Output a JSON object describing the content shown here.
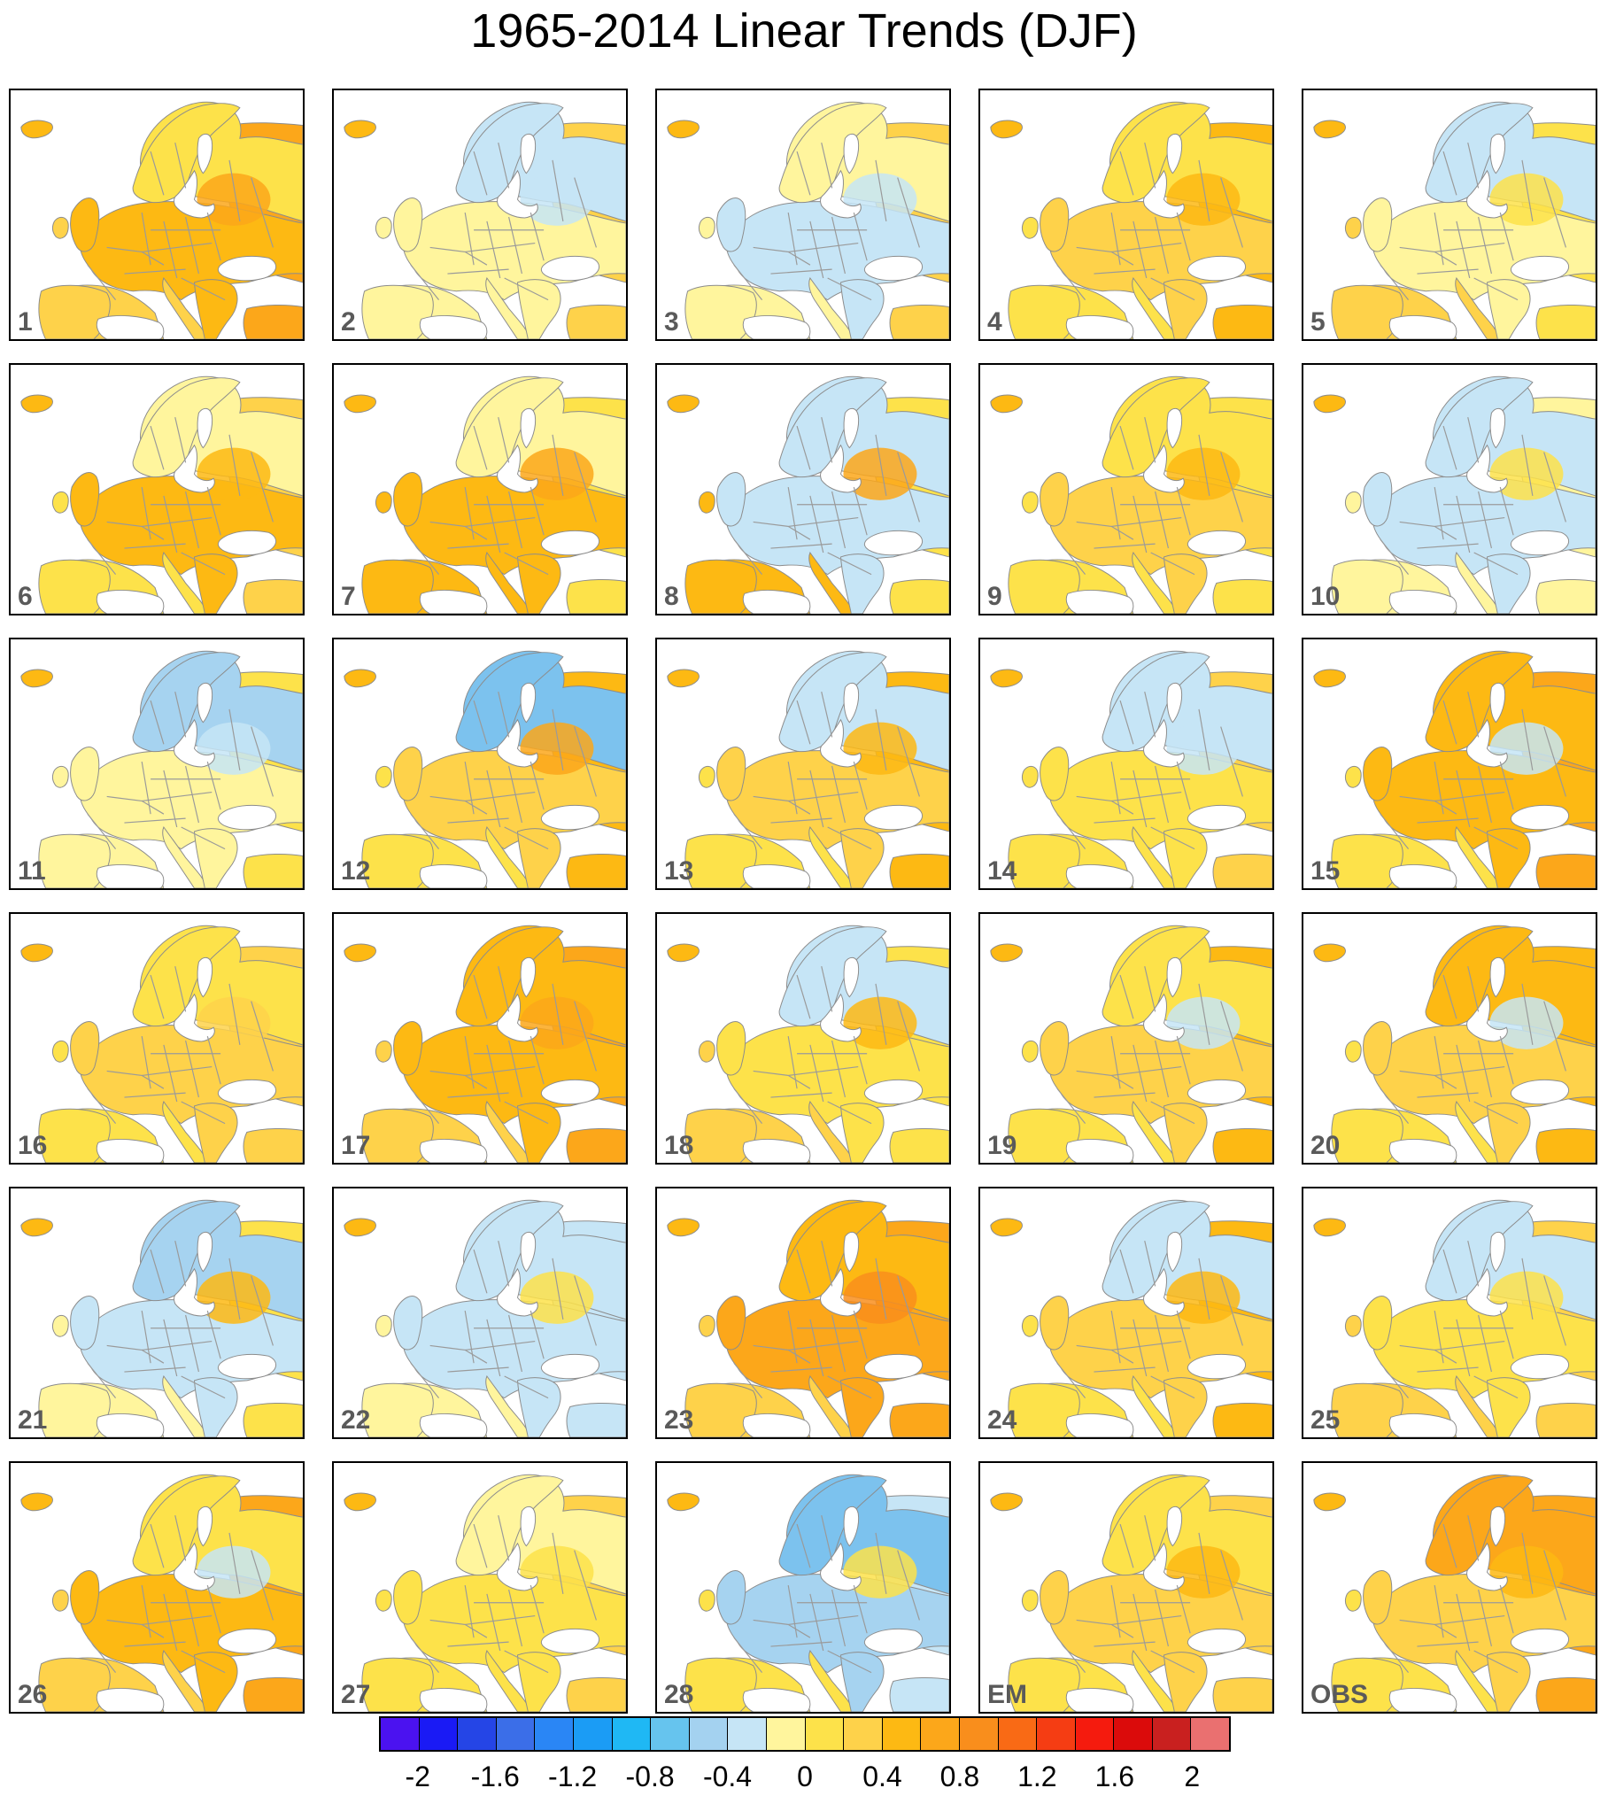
{
  "title": "1965-2014 Linear Trends (DJF)",
  "panels": [
    {
      "label": "1",
      "north": "#fde24a",
      "center": "#fdb913",
      "east": "#fca71a",
      "south": "#fed24a",
      "accent": "#fca71a"
    },
    {
      "label": "2",
      "north": "#c6e5f6",
      "center": "#fff59d",
      "east": "#fed24a",
      "south": "#fff59d",
      "accent": "#c6e5f6"
    },
    {
      "label": "3",
      "north": "#fff59d",
      "center": "#c6e5f6",
      "east": "#fed24a",
      "south": "#fff59d",
      "accent": "#c6e5f6"
    },
    {
      "label": "4",
      "north": "#fde24a",
      "center": "#fed24a",
      "east": "#fdb913",
      "south": "#fde24a",
      "accent": "#fdb913"
    },
    {
      "label": "5",
      "north": "#c6e5f6",
      "center": "#fff59d",
      "east": "#fde24a",
      "south": "#fed24a",
      "accent": "#fde24a"
    },
    {
      "label": "6",
      "north": "#fff59d",
      "center": "#fdb913",
      "east": "#fed24a",
      "south": "#fde24a",
      "accent": "#fdb913"
    },
    {
      "label": "7",
      "north": "#fff59d",
      "center": "#fdb913",
      "east": "#fde24a",
      "south": "#fdb913",
      "accent": "#fca71a"
    },
    {
      "label": "8",
      "north": "#c6e5f6",
      "center": "#c6e5f6",
      "east": "#fde24a",
      "south": "#fdb913",
      "accent": "#fca71a"
    },
    {
      "label": "9",
      "north": "#fde24a",
      "center": "#fed24a",
      "east": "#fde24a",
      "south": "#fde24a",
      "accent": "#fdb913"
    },
    {
      "label": "10",
      "north": "#c6e5f6",
      "center": "#c6e5f6",
      "east": "#fff59d",
      "south": "#fff59d",
      "accent": "#fde24a"
    },
    {
      "label": "11",
      "north": "#a6d3f0",
      "center": "#fff59d",
      "east": "#fde24a",
      "south": "#fff59d",
      "accent": "#c6e5f6"
    },
    {
      "label": "12",
      "north": "#7cc2ee",
      "center": "#fed24a",
      "east": "#fdb913",
      "south": "#fde24a",
      "accent": "#fca71a"
    },
    {
      "label": "13",
      "north": "#c6e5f6",
      "center": "#fed24a",
      "east": "#fdb913",
      "south": "#fde24a",
      "accent": "#fdb913"
    },
    {
      "label": "14",
      "north": "#c6e5f6",
      "center": "#fde24a",
      "east": "#fed24a",
      "south": "#fde24a",
      "accent": "#c6e5f6"
    },
    {
      "label": "15",
      "north": "#fdb913",
      "center": "#fdb913",
      "east": "#fca71a",
      "south": "#fde24a",
      "accent": "#c6e5f6"
    },
    {
      "label": "16",
      "north": "#fde24a",
      "center": "#fed24a",
      "east": "#fed24a",
      "south": "#fde24a",
      "accent": "#fed24a"
    },
    {
      "label": "17",
      "north": "#fdb913",
      "center": "#fdb913",
      "east": "#fca71a",
      "south": "#fed24a",
      "accent": "#fca71a"
    },
    {
      "label": "18",
      "north": "#c6e5f6",
      "center": "#fde24a",
      "east": "#fde24a",
      "south": "#fed24a",
      "accent": "#fdb913"
    },
    {
      "label": "19",
      "north": "#fde24a",
      "center": "#fed24a",
      "east": "#fdb913",
      "south": "#fde24a",
      "accent": "#c6e5f6"
    },
    {
      "label": "20",
      "north": "#fdb913",
      "center": "#fed24a",
      "east": "#fdb913",
      "south": "#fde24a",
      "accent": "#c6e5f6"
    },
    {
      "label": "21",
      "north": "#a6d3f0",
      "center": "#c6e5f6",
      "east": "#fde24a",
      "south": "#fff59d",
      "accent": "#fdb913"
    },
    {
      "label": "22",
      "north": "#c6e5f6",
      "center": "#c6e5f6",
      "east": "#c6e5f6",
      "south": "#fff59d",
      "accent": "#fde24a"
    },
    {
      "label": "23",
      "north": "#fdb913",
      "center": "#fca71a",
      "east": "#fca71a",
      "south": "#fed24a",
      "accent": "#f98e1c"
    },
    {
      "label": "24",
      "north": "#c6e5f6",
      "center": "#fed24a",
      "east": "#fdb913",
      "south": "#fde24a",
      "accent": "#fdb913"
    },
    {
      "label": "25",
      "north": "#c6e5f6",
      "center": "#fde24a",
      "east": "#fed24a",
      "south": "#fed24a",
      "accent": "#fde24a"
    },
    {
      "label": "26",
      "north": "#fde24a",
      "center": "#fdb913",
      "east": "#fca71a",
      "south": "#fed24a",
      "accent": "#c6e5f6"
    },
    {
      "label": "27",
      "north": "#fff59d",
      "center": "#fde24a",
      "east": "#fed24a",
      "south": "#fde24a",
      "accent": "#fde24a"
    },
    {
      "label": "28",
      "north": "#7cc2ee",
      "center": "#a6d3f0",
      "east": "#c6e5f6",
      "south": "#fde24a",
      "accent": "#fde24a"
    },
    {
      "label": "EM",
      "north": "#fde24a",
      "center": "#fed24a",
      "east": "#fed24a",
      "south": "#fde24a",
      "accent": "#fdb913"
    },
    {
      "label": "OBS",
      "north": "#fca71a",
      "center": "#fed24a",
      "east": "#fca71a",
      "south": "#fde24a",
      "accent": "#fdb913"
    }
  ],
  "colorbar": {
    "colors": [
      "#4b12f0",
      "#1a1af5",
      "#2545e6",
      "#3b6ee8",
      "#2a86f5",
      "#1b9cf5",
      "#1fb8f4",
      "#66c4ee",
      "#a4d2f0",
      "#c6e5f6",
      "#fff59d",
      "#fde24a",
      "#fed24a",
      "#fdb913",
      "#fca71a",
      "#f98e1c",
      "#f96a15",
      "#f53d13",
      "#f51b0e",
      "#db0b0b",
      "#c9201f",
      "#ea7070"
    ],
    "tick_labels": [
      "-2",
      "-1.6",
      "-1.2",
      "-0.8",
      "-0.4",
      "0",
      "0.4",
      "0.8",
      "1.2",
      "1.6",
      "2"
    ]
  }
}
